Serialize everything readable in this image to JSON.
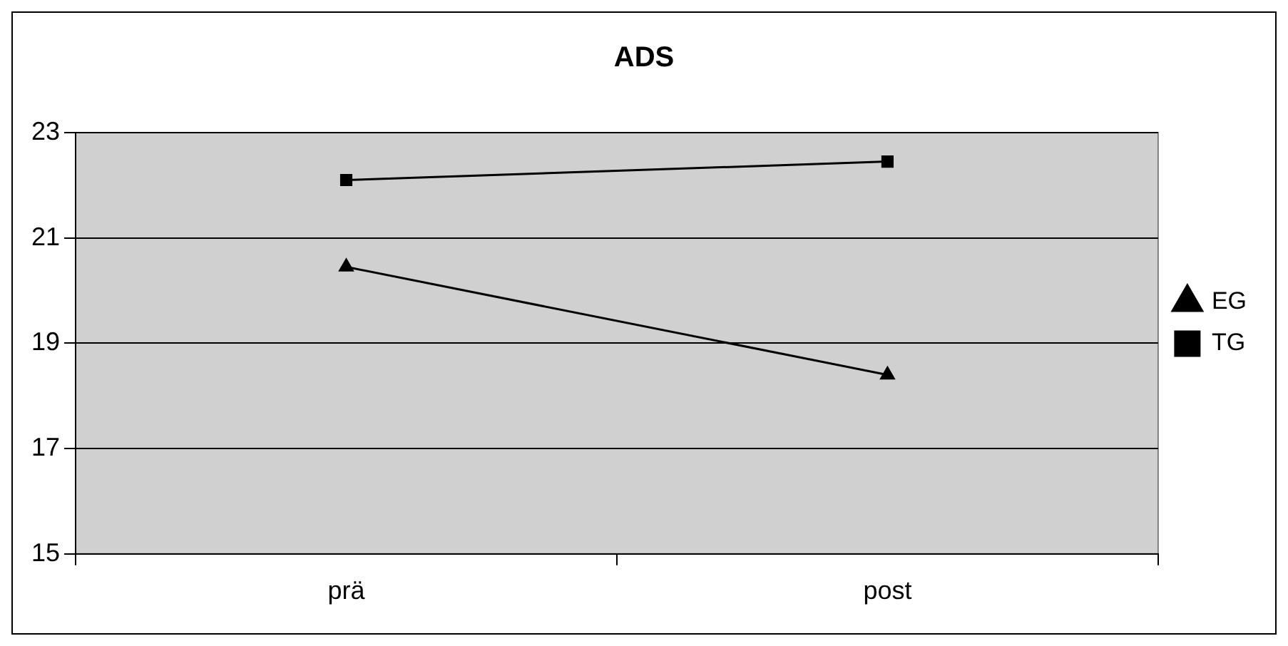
{
  "chart_data": {
    "type": "line",
    "title": "ADS",
    "categories": [
      "prä",
      "post"
    ],
    "series": [
      {
        "name": "EG",
        "color": "#000000",
        "marker": "triangle",
        "values": [
          20.45,
          18.4
        ]
      },
      {
        "name": "TG",
        "color": "#000000",
        "marker": "square",
        "values": [
          22.1,
          22.45
        ]
      }
    ],
    "ylim": [
      15,
      23
    ],
    "yticks": [
      15,
      17,
      19,
      21,
      23
    ],
    "grid": "y",
    "legend": "right",
    "line_style": "solid"
  }
}
